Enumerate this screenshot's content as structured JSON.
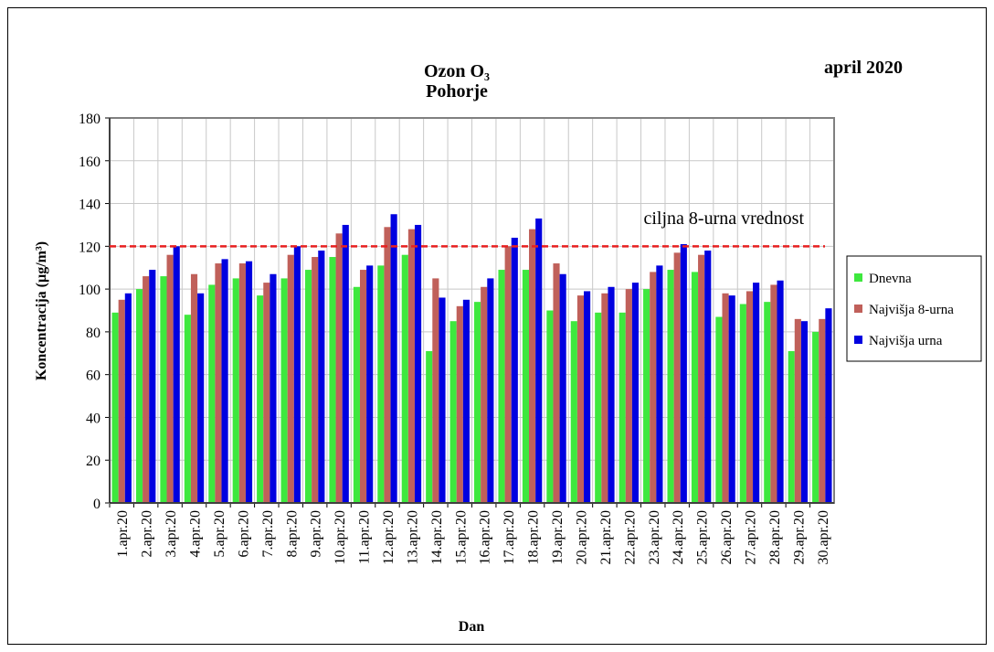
{
  "chart_data": {
    "type": "bar",
    "title": "Ozon O₃",
    "subtitle": "Pohorje",
    "period": "april 2020",
    "x_label": "Dan",
    "y_label": "Koncentracija  (µg/m³)",
    "categories": [
      "1.apr.20",
      "2.apr.20",
      "3.apr.20",
      "4.apr.20",
      "5.apr.20",
      "6.apr.20",
      "7.apr.20",
      "8.apr.20",
      "9.apr.20",
      "10.apr.20",
      "11.apr.20",
      "12.apr.20",
      "13.apr.20",
      "14.apr.20",
      "15.apr.20",
      "16.apr.20",
      "17.apr.20",
      "18.apr.20",
      "19.apr.20",
      "20.apr.20",
      "21.apr.20",
      "22.apr.20",
      "23.apr.20",
      "24.apr.20",
      "25.apr.20",
      "26.apr.20",
      "27.apr.20",
      "28.apr.20",
      "29.apr.20",
      "30.apr.20"
    ],
    "series": [
      {
        "name": "Dnevna",
        "color": "#3ee83e",
        "values": [
          89,
          100,
          106,
          88,
          102,
          105,
          97,
          105,
          109,
          115,
          101,
          111,
          116,
          71,
          85,
          94,
          109,
          109,
          90,
          85,
          89,
          89,
          100,
          109,
          108,
          87,
          93,
          94,
          71,
          80
        ]
      },
      {
        "name": "Najvišja 8-urna",
        "color": "#c0605a",
        "values": [
          95,
          106,
          116,
          107,
          112,
          112,
          103,
          116,
          115,
          126,
          109,
          129,
          128,
          105,
          92,
          101,
          120,
          128,
          112,
          97,
          98,
          100,
          108,
          117,
          116,
          98,
          99,
          102,
          86,
          86
        ]
      },
      {
        "name": "Najvišja urna",
        "color": "#0000e0",
        "values": [
          98,
          109,
          120,
          98,
          114,
          113,
          107,
          120,
          118,
          130,
          111,
          135,
          130,
          96,
          95,
          105,
          124,
          133,
          107,
          99,
          101,
          103,
          111,
          121,
          118,
          97,
          103,
          104,
          85,
          91
        ]
      }
    ],
    "threshold": {
      "value": 120,
      "label": "ciljna 8-urna vrednost",
      "color": "#e82020"
    },
    "ylim": [
      0,
      180
    ],
    "yticks": [
      0,
      20,
      40,
      60,
      80,
      100,
      120,
      140,
      160,
      180
    ],
    "grid": true,
    "legend": "right"
  }
}
